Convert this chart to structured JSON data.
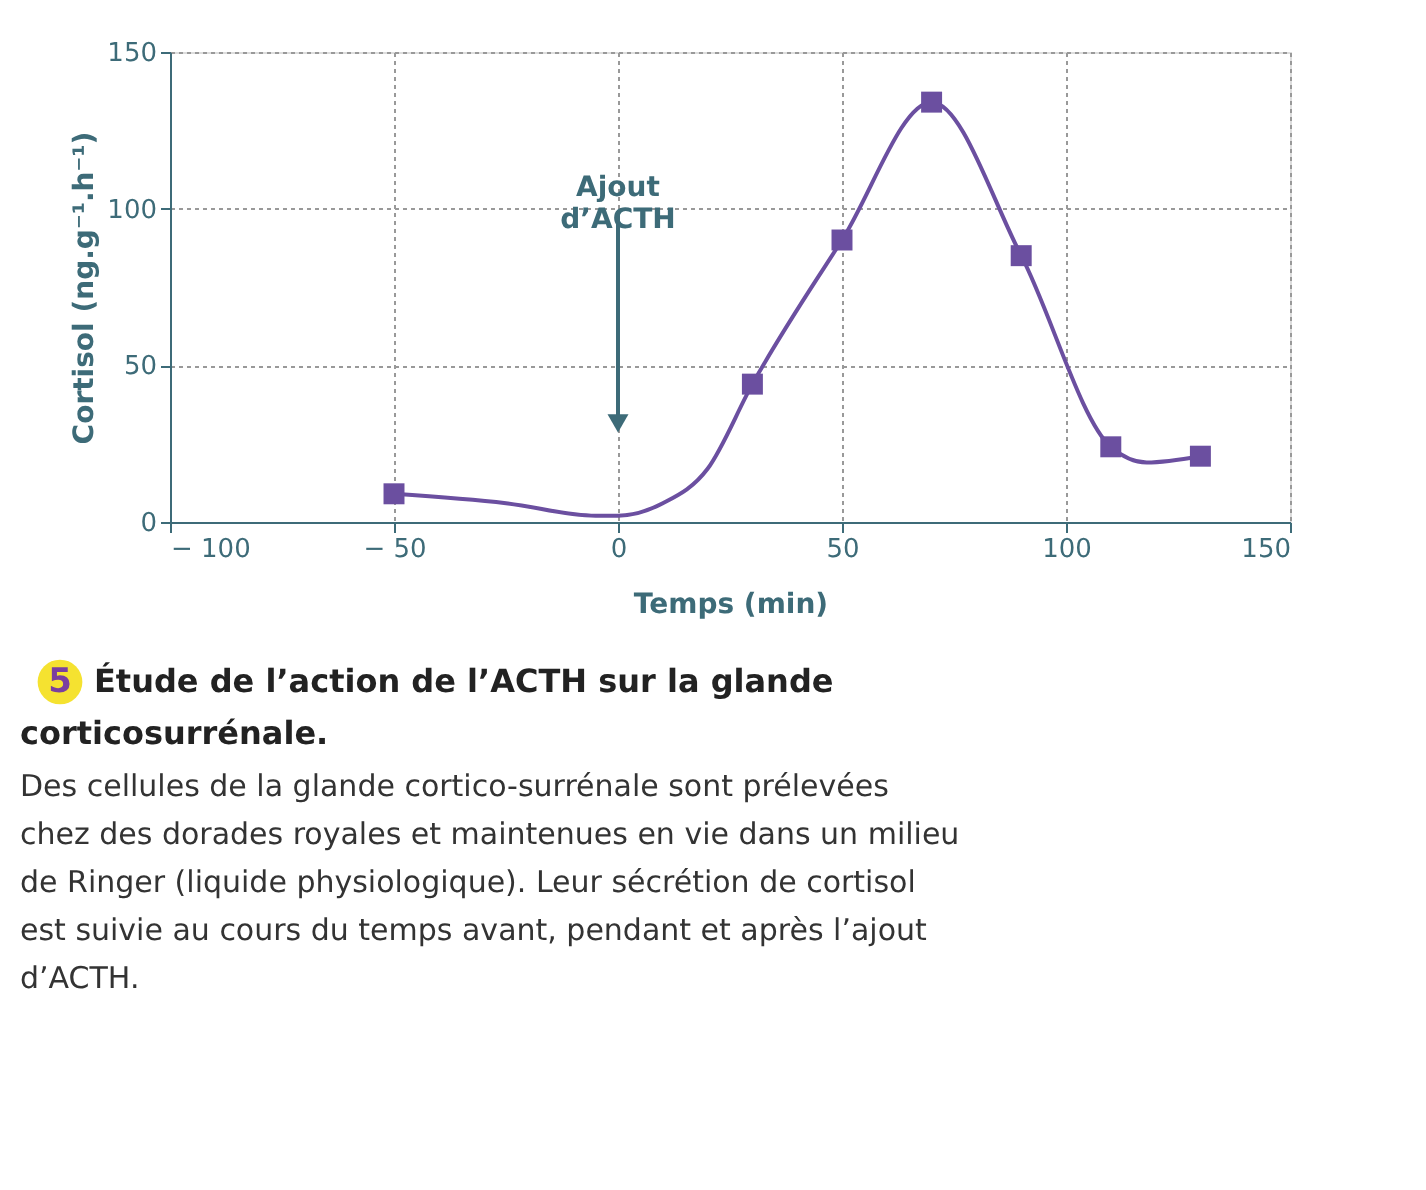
{
  "chart_data": {
    "type": "line",
    "xlabel": "Temps (min)",
    "ylabel": "Cortisol (ng.g⁻¹.h⁻¹)",
    "xlim": [
      -100,
      150
    ],
    "xticks": [
      {
        "value": -100,
        "label": "− 100"
      },
      {
        "value": -50,
        "label": "− 50"
      },
      0,
      50,
      100,
      150
    ],
    "ylim": [
      0,
      150
    ],
    "yticks": [
      0,
      50,
      100,
      150
    ],
    "grid": true,
    "series": [
      {
        "color": "#6b4fa0",
        "marker": "none",
        "x": [
          -50,
          -25,
          -5,
          0,
          10,
          20,
          30,
          50,
          70,
          90,
          110,
          118,
          130
        ],
        "values": [
          9,
          6,
          2,
          2,
          6,
          17,
          44,
          90,
          134,
          85,
          24,
          19,
          21
        ]
      },
      {
        "type": "scatter",
        "color": "#6b4fa0",
        "marker": "square",
        "x": [
          -50,
          30,
          50,
          70,
          90,
          110,
          130
        ],
        "values": [
          9,
          44,
          90,
          134,
          85,
          24,
          21
        ]
      }
    ],
    "annotations": [
      "Ajout d’ACTH",
      "5",
      "Étude de l’action de l’ACTH sur la glande corticosurrénale.",
      "Des cellules de la glande cortico-surrénale sont prélevées chez des dorades royales et maintenues en vie dans un milieu de Ringer (liquide physiologique). Leur sécrétion de cortisol est suivie au cours du temps avant, pendant et après l’ajout d’ACTH."
    ]
  }
}
